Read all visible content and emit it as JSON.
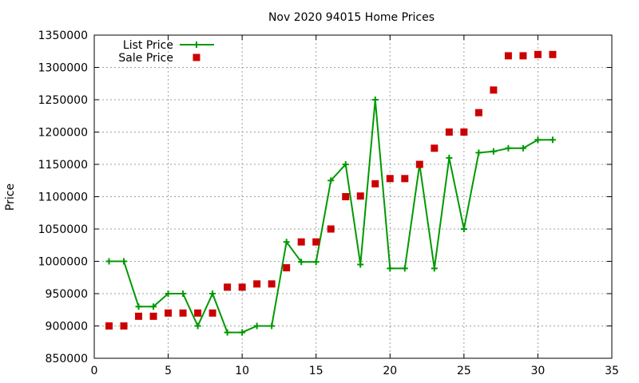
{
  "chart_data": {
    "type": "line",
    "title": "Nov 2020 94015 Home Prices",
    "xlabel": "",
    "ylabel": "Price",
    "xlim": [
      0,
      35
    ],
    "ylim": [
      850000,
      1350000
    ],
    "xticks": [
      0,
      5,
      10,
      15,
      20,
      25,
      30,
      35
    ],
    "yticks": [
      850000,
      900000,
      950000,
      1000000,
      1050000,
      1100000,
      1150000,
      1200000,
      1250000,
      1300000,
      1350000
    ],
    "grid": true,
    "legend_position": "top-left",
    "series": [
      {
        "name": "List Price",
        "style": "line-plus",
        "color": "#009900",
        "x": [
          1,
          2,
          3,
          4,
          5,
          6,
          7,
          8,
          9,
          10,
          11,
          12,
          13,
          14,
          15,
          16,
          17,
          18,
          19,
          20,
          21,
          22,
          23,
          24,
          25,
          26,
          27,
          28,
          29,
          30,
          31
        ],
        "y": [
          1000000,
          1000000,
          930000,
          930000,
          950000,
          950000,
          900000,
          950000,
          890000,
          890000,
          900000,
          900000,
          1030000,
          999000,
          999000,
          1125000,
          1150000,
          995000,
          1250000,
          989000,
          989000,
          1150000,
          989000,
          1160000,
          1050000,
          1168000,
          1170000,
          1175000,
          1175000,
          1188000,
          1188000
        ]
      },
      {
        "name": "Sale Price",
        "style": "square",
        "color": "#cc0000",
        "x": [
          1,
          2,
          3,
          4,
          5,
          6,
          7,
          8,
          9,
          10,
          11,
          12,
          13,
          14,
          15,
          16,
          17,
          18,
          19,
          20,
          21,
          22,
          23,
          24,
          25,
          26,
          27,
          28,
          29,
          30,
          31
        ],
        "y": [
          900000,
          900000,
          915000,
          915000,
          920000,
          920000,
          920000,
          920000,
          960000,
          960000,
          965000,
          965000,
          990000,
          1030000,
          1030000,
          1050000,
          1100000,
          1101000,
          1120000,
          1128000,
          1128000,
          1150000,
          1175000,
          1200000,
          1200000,
          1230000,
          1265000,
          1318000,
          1318000,
          1320000,
          1320000
        ]
      }
    ]
  }
}
